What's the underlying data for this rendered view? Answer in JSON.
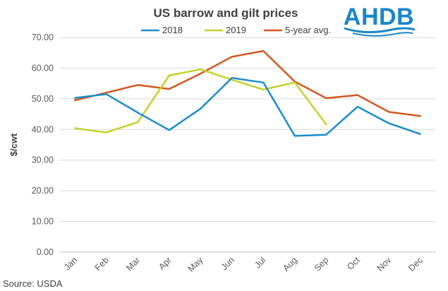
{
  "chart_data": {
    "type": "line",
    "title": "US barrow and gilt prices",
    "ylabel": "$/cwt",
    "xlabel": "",
    "categories": [
      "Jan",
      "Feb",
      "Mar",
      "Apr",
      "May",
      "Jun",
      "Jul",
      "Aug",
      "Sep",
      "Oct",
      "Nov",
      "Dec"
    ],
    "ylim": [
      0,
      70
    ],
    "yticks": [
      "0.00",
      "10.00",
      "20.00",
      "30.00",
      "40.00",
      "50.00",
      "60.00",
      "70.00"
    ],
    "grid": true,
    "legend_position": "top",
    "series": [
      {
        "name": "2018",
        "color": "#1a8dcc",
        "values": [
          50.3,
          51.5,
          45.5,
          39.8,
          46.8,
          56.8,
          55.3,
          37.9,
          38.3,
          47.4,
          42.0,
          38.5
        ]
      },
      {
        "name": "2019",
        "color": "#c3d32a",
        "values": [
          40.4,
          39.0,
          42.4,
          57.6,
          59.6,
          56.2,
          53.0,
          55.3,
          41.6,
          null,
          null,
          null
        ]
      },
      {
        "name": "5-year avg.",
        "color": "#d2591e",
        "values": [
          49.5,
          52.0,
          54.5,
          53.2,
          58.2,
          63.7,
          65.6,
          55.6,
          50.2,
          51.2,
          45.7,
          44.4
        ]
      }
    ]
  },
  "source": "Source: USDA",
  "logo": {
    "text": "AHDB",
    "color": "#1a86c8"
  }
}
